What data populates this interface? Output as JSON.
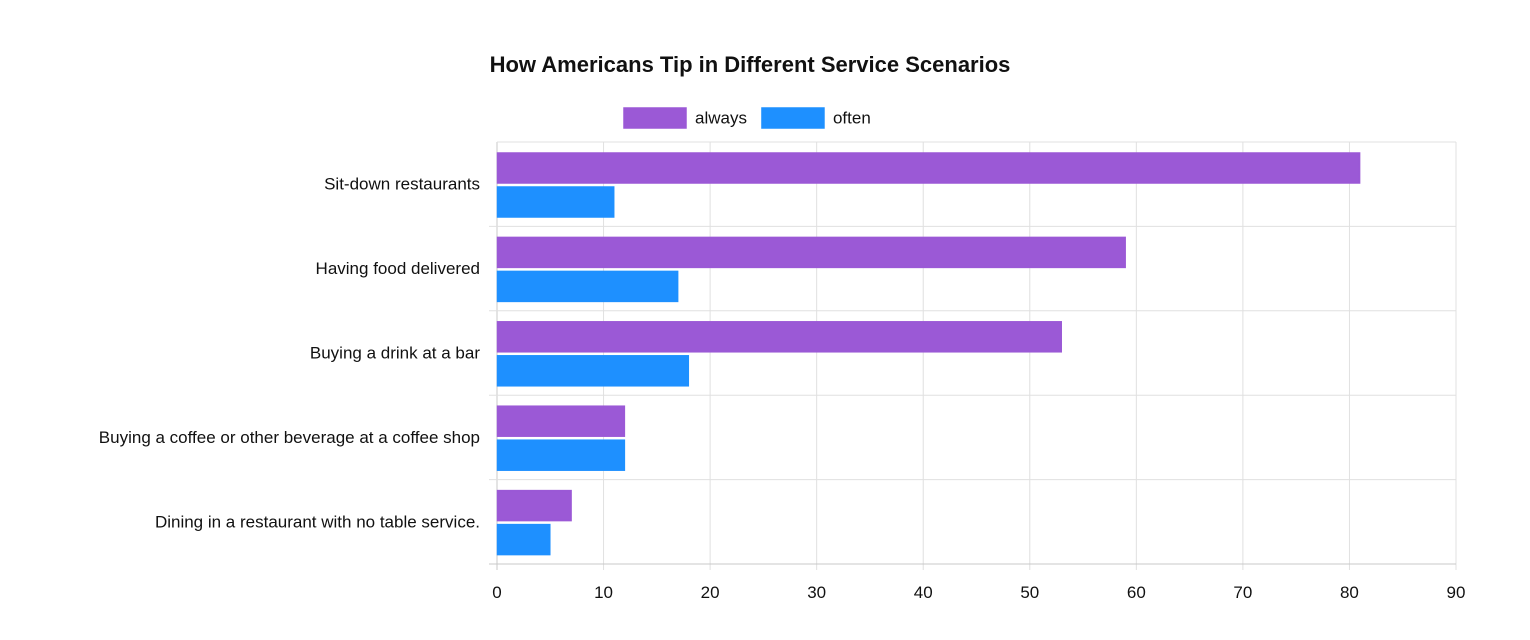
{
  "chart_data": {
    "type": "bar",
    "orientation": "horizontal",
    "title": "How Americans Tip in Different Service Scenarios",
    "categories": [
      "Sit-down restaurants",
      "Having food delivered",
      "Buying a drink at a bar",
      "Buying a coffee or other beverage at a coffee shop",
      "Dining in a restaurant with no table service."
    ],
    "series": [
      {
        "name": "always",
        "color": "#9b59d6",
        "values": [
          81,
          59,
          53,
          12,
          7
        ]
      },
      {
        "name": "often",
        "color": "#1e90ff",
        "values": [
          11,
          17,
          18,
          12,
          5
        ]
      }
    ],
    "xlim": [
      0,
      90
    ],
    "xticks": [
      0,
      10,
      20,
      30,
      40,
      50,
      60,
      70,
      80,
      90
    ],
    "grid": true,
    "legend_position": "top-center"
  }
}
